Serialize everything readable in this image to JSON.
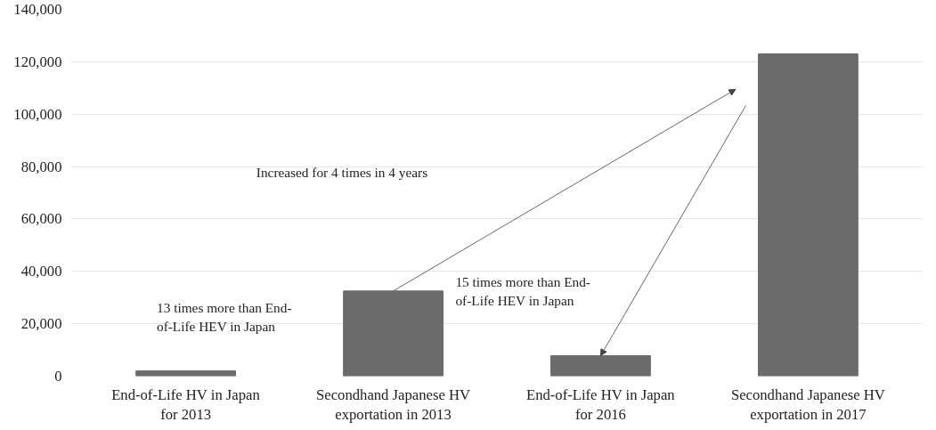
{
  "chart_data": {
    "type": "bar",
    "categories": [
      "End-of-Life HV in Japan\nfor 2013",
      "Secondhand Japanese HV\nexportation in 2013",
      "End-of-Life HV in Japan\nfor 2016",
      "Secondhand Japanese HV\nexportation in 2017"
    ],
    "values": [
      2000,
      32500,
      7800,
      123000
    ],
    "color": "#6b6b6b",
    "ylim": [
      0,
      140000
    ],
    "yticks": [
      {
        "value": 0,
        "label": "0"
      },
      {
        "value": 20000,
        "label": "20,000"
      },
      {
        "value": 40000,
        "label": "40,000"
      },
      {
        "value": 60000,
        "label": "60,000"
      },
      {
        "value": 80000,
        "label": "80,000"
      },
      {
        "value": 100000,
        "label": "100,000"
      },
      {
        "value": 120000,
        "label": "120,000"
      },
      {
        "value": 140000,
        "label": "140,000"
      }
    ],
    "grid": "y",
    "annotations": [
      "Increased for 4 times in 4 years",
      "13 times more than End-\nof-Life HEV in Japan",
      "15 times more than End-\nof-Life HEV in Japan"
    ]
  }
}
